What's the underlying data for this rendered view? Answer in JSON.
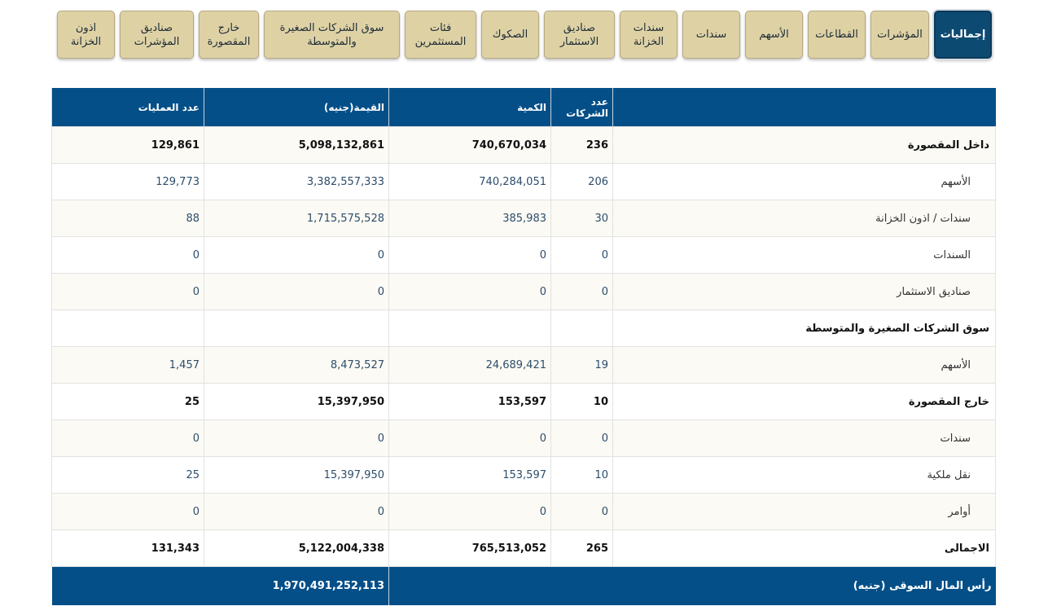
{
  "tabs": [
    {
      "label": "إجماليات",
      "active": true
    },
    {
      "label": "المؤشرات"
    },
    {
      "label": "القطاعات"
    },
    {
      "label": "الأسهم"
    },
    {
      "label": "سندات"
    },
    {
      "label": "سندات الخزانة"
    },
    {
      "label": "صناديق الاستثمار"
    },
    {
      "label": "الصكوك"
    },
    {
      "label": "فئات المستثمرين"
    },
    {
      "label": "سوق الشركات الصغيرة والمتوسطة"
    },
    {
      "label": "خارج المقصورة"
    },
    {
      "label": "صناديق المؤشرات"
    },
    {
      "label": "اذون الخزانة"
    }
  ],
  "table": {
    "columns": [
      "عدد الشركات",
      "الكمية",
      "القيمة(جنيه)",
      "عدد العمليات"
    ],
    "rows": [
      {
        "label": "داخل المقصورة",
        "bold": true,
        "cells": [
          "236",
          "740,670,034",
          "5,098,132,861",
          "129,861"
        ]
      },
      {
        "label": "الأسهم",
        "cells": [
          "206",
          "740,284,051",
          "3,382,557,333",
          "129,773"
        ]
      },
      {
        "label": "سندات / اذون الخزانة",
        "cells": [
          "30",
          "385,983",
          "1,715,575,528",
          "88"
        ]
      },
      {
        "label": "السندات",
        "cells": [
          "0",
          "0",
          "0",
          "0"
        ]
      },
      {
        "label": "صناديق الاستثمار",
        "cells": [
          "0",
          "0",
          "0",
          "0"
        ]
      },
      {
        "label": "سوق الشركات الصغيرة والمتوسطة",
        "bold": true
      },
      {
        "label": "الأسهم",
        "cells": [
          "19",
          "24,689,421",
          "8,473,527",
          "1,457"
        ]
      },
      {
        "label": "خارج المقصورة",
        "bold": true,
        "cells": [
          "10",
          "153,597",
          "15,397,950",
          "25"
        ]
      },
      {
        "label": "سندات",
        "cells": [
          "0",
          "0",
          "0",
          "0"
        ]
      },
      {
        "label": "نقل ملكية",
        "cells": [
          "10",
          "153,597",
          "15,397,950",
          "25"
        ]
      },
      {
        "label": "أوامر",
        "cells": [
          "0",
          "0",
          "0",
          "0"
        ]
      },
      {
        "label": "الاجمالى",
        "bold": true,
        "cells": [
          "265",
          "765,513,052",
          "5,122,004,338",
          "131,343"
        ]
      }
    ],
    "footer": {
      "label": "رأس المال السوقى (جنيه)",
      "value": "1,970,491,252,113"
    }
  }
}
